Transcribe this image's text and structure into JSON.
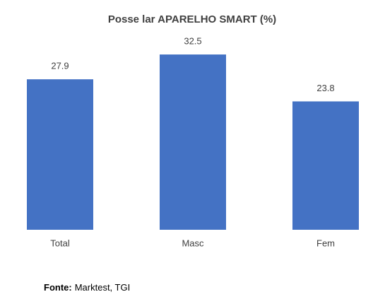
{
  "chart_data": {
    "type": "bar",
    "title": "Posse lar APARELHO SMART (%)",
    "categories": [
      "Total",
      "Masc",
      "Fem"
    ],
    "values": [
      27.9,
      32.5,
      23.8
    ],
    "color": "#4472c4",
    "ylim": [
      0,
      35
    ]
  },
  "footer": {
    "label": "Fonte:",
    "text": "Marktest, TGI"
  }
}
